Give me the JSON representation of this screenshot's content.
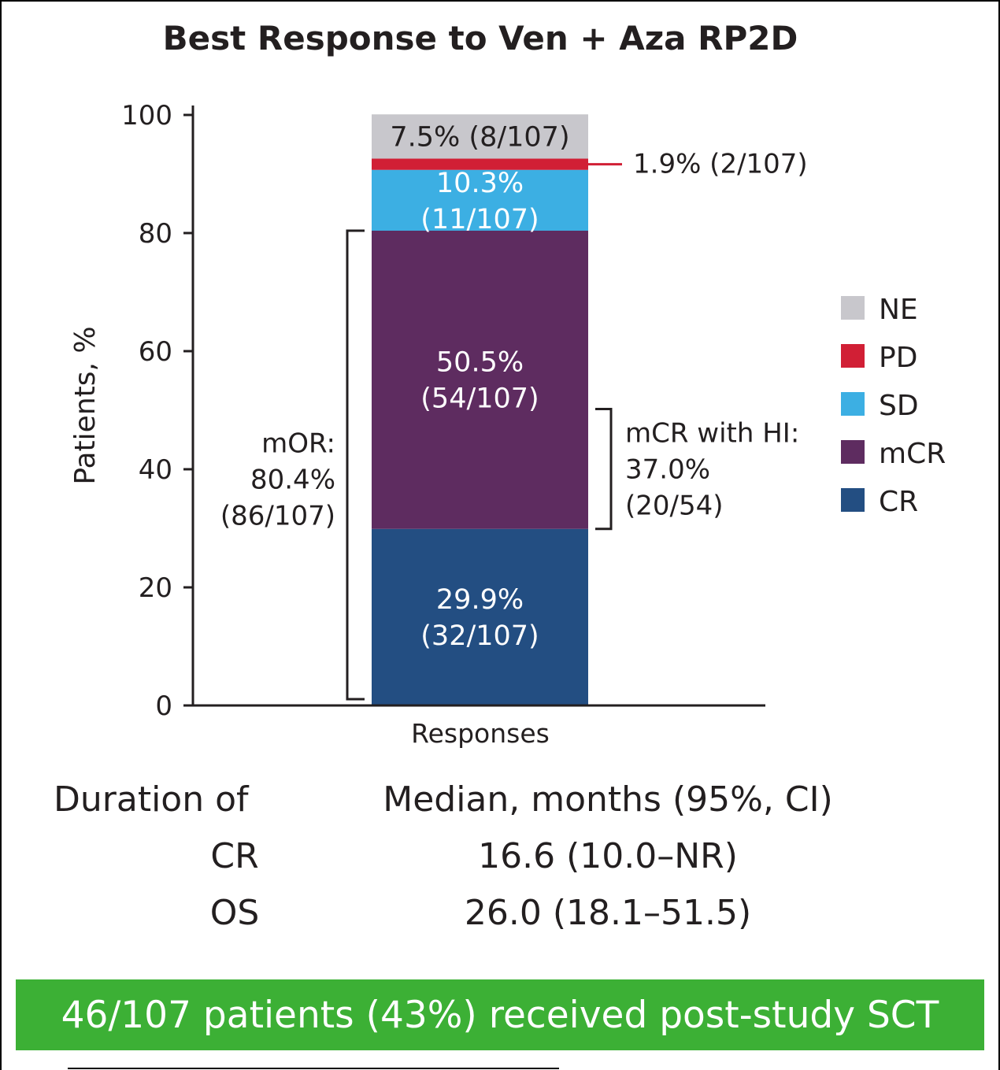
{
  "chart_data": {
    "type": "bar",
    "stacked": true,
    "title": "Best Response to Ven + Aza RP2D",
    "xlabel": "Responses",
    "ylabel": "Patients, %",
    "ylim": [
      0,
      100
    ],
    "yticks": [
      0,
      20,
      40,
      60,
      80,
      100
    ],
    "categories": [
      "Responses"
    ],
    "series": [
      {
        "name": "CR",
        "values": [
          29.9
        ],
        "color": "#234e82",
        "label_lines": [
          "29.9%",
          "(32/107)"
        ],
        "label_color": "#ffffff"
      },
      {
        "name": "mCR",
        "values": [
          50.5
        ],
        "color": "#5e2c60",
        "label_lines": [
          "50.5%",
          "(54/107)"
        ],
        "label_color": "#ffffff"
      },
      {
        "name": "SD",
        "values": [
          10.3
        ],
        "color": "#3cafe3",
        "label_lines": [
          "10.3%",
          "(11/107)"
        ],
        "label_color": "#ffffff"
      },
      {
        "name": "PD",
        "values": [
          1.9
        ],
        "color": "#d11f35",
        "label_lines": [
          "1.9% (2/107)"
        ],
        "label_color": "#231f20",
        "label_outside": true
      },
      {
        "name": "NE",
        "values": [
          7.5
        ],
        "color": "#c8c7cc",
        "label_lines": [
          "7.5% (8/107)"
        ],
        "label_color": "#231f20"
      }
    ],
    "legend": {
      "placement": "right",
      "order": [
        "NE",
        "PD",
        "SD",
        "mCR",
        "CR"
      ]
    },
    "annotations": [
      {
        "id": "mor",
        "side": "left",
        "from": 0,
        "to": 80.4,
        "lines": [
          "mOR:",
          "80.4%",
          "(86/107)"
        ]
      },
      {
        "id": "mcr-hi",
        "side": "right",
        "from": 29.9,
        "to": 50.2,
        "lines": [
          "mCR with HI:",
          "37.0%",
          "(20/54)"
        ]
      }
    ]
  },
  "duration_table": {
    "header_left": "Duration of",
    "header_right": "Median, months (95%, CI)",
    "rows": [
      {
        "label": "CR",
        "value": "16.6 (10.0–NR)"
      },
      {
        "label": "OS",
        "value": "26.0 (18.1–51.5)"
      }
    ]
  },
  "banner": {
    "text": "46/107 patients (43%) received post-study SCT",
    "color": "#3cb035"
  }
}
